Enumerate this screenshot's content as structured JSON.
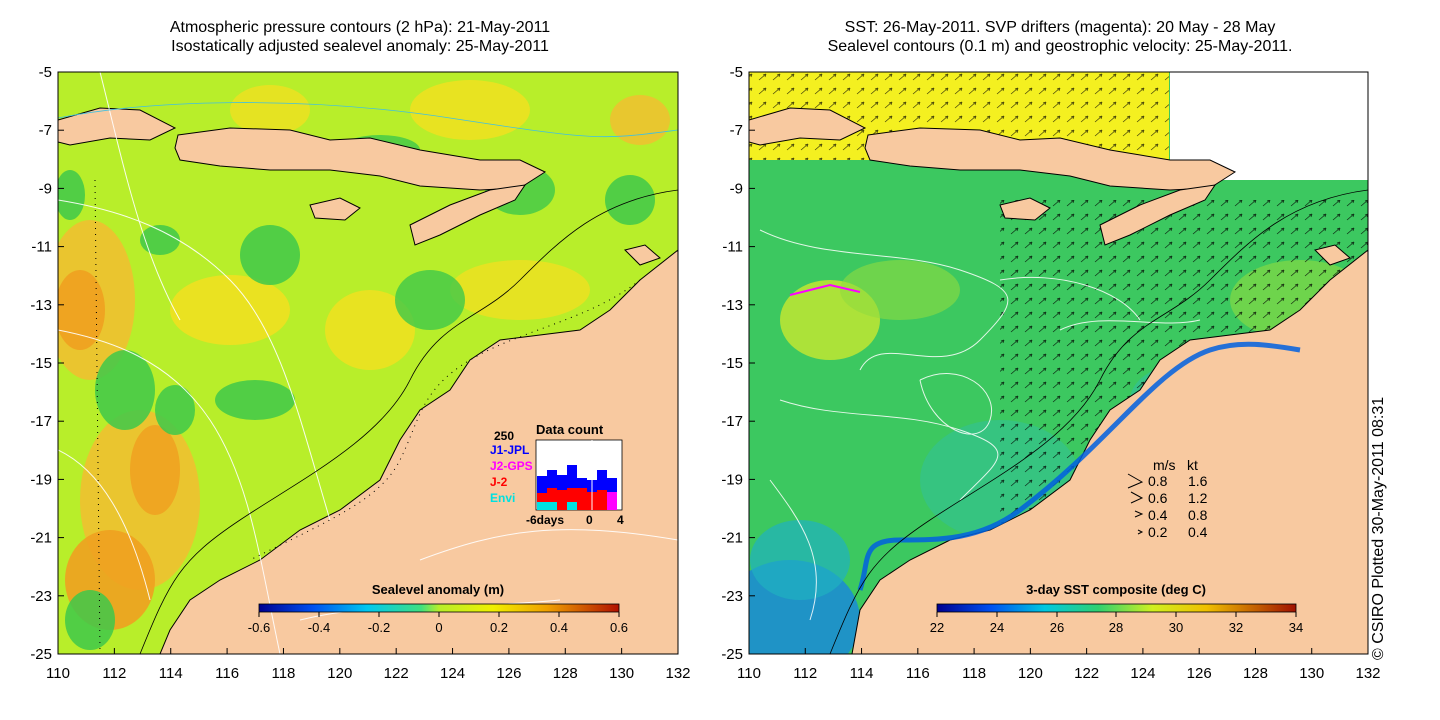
{
  "left_panel": {
    "title_line1": "Atmospheric pressure contours (2 hPa): 21-May-2011",
    "title_line2": "Isostatically adjusted sealevel anomaly: 25-May-2011",
    "colorbar_label": "Sealevel anomaly (m)",
    "colorbar_ticks": [
      "-0.6",
      "-0.4",
      "-0.2",
      "0",
      "0.2",
      "0.4",
      "0.6"
    ],
    "colors": {
      "sea": "#b8ee2a",
      "land": "#f8c9a0",
      "high": "#f0a020",
      "low": "#3ec84a"
    },
    "data_count": {
      "title": "Data count",
      "max_label": "250",
      "legend": [
        {
          "label": "J1-JPL",
          "color": "#0000ff"
        },
        {
          "label": "J2-GPS",
          "color": "#ff00ff"
        },
        {
          "label": "J-2",
          "color": "#ff0000"
        },
        {
          "label": "Envi",
          "color": "#00e0e0"
        }
      ],
      "x_labels": [
        "-6days",
        "0",
        "4"
      ]
    }
  },
  "right_panel": {
    "title_line1": "SST: 26-May-2011. SVP drifters (magenta): 20 May - 28 May",
    "title_line2": "Sealevel contours (0.1 m) and geostrophic velocity: 25-May-2011.",
    "colorbar_label": "3-day SST composite (deg C)",
    "colorbar_ticks": [
      "22",
      "24",
      "26",
      "28",
      "30",
      "32",
      "34"
    ],
    "colors": {
      "sea": "#3cc860",
      "land": "#f8c9a0",
      "warm": "#f4f020",
      "cool": "#1a8ad8"
    },
    "velocity_legend": {
      "header_ms": "m/s",
      "header_kt": "kt",
      "rows": [
        {
          "ms": "0.8",
          "kt": "1.6"
        },
        {
          "ms": "0.6",
          "kt": "1.2"
        },
        {
          "ms": "0.4",
          "kt": "0.8"
        },
        {
          "ms": "0.2",
          "kt": "0.4"
        }
      ]
    }
  },
  "axes": {
    "x_ticks": [
      "110",
      "112",
      "114",
      "116",
      "118",
      "120",
      "122",
      "124",
      "126",
      "128",
      "130",
      "132"
    ],
    "y_ticks": [
      "-5",
      "-7",
      "-9",
      "-11",
      "-13",
      "-15",
      "-17",
      "-19",
      "-21",
      "-23",
      "-25"
    ]
  },
  "credit": "© CSIRO Plotted 30-May-2011 08:31"
}
